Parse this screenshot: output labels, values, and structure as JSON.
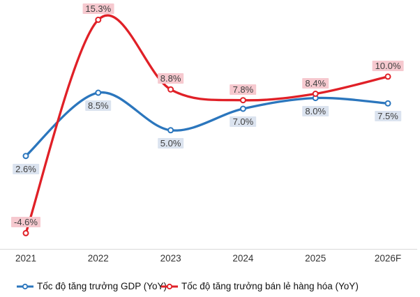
{
  "chart_data": {
    "type": "line",
    "title": "",
    "categories": [
      "2021",
      "2022",
      "2023",
      "2024",
      "2025",
      "2026F"
    ],
    "series": [
      {
        "name": "Tốc độ tăng trưởng GDP (YoY)",
        "values": [
          2.6,
          8.5,
          5.0,
          7.0,
          8.0,
          7.5
        ],
        "labels": [
          "2.6%",
          "8.5%",
          "5.0%",
          "7.0%",
          "8.0%",
          "7.5%"
        ],
        "color": "#2b76bd",
        "label_bg": "#dbe3ef",
        "label_position": "below",
        "marker": "open-circle"
      },
      {
        "name": "Tốc độ tăng trưởng bán lẻ hàng hóa (YoY)",
        "values": [
          -4.6,
          15.3,
          8.8,
          7.8,
          8.4,
          10.0
        ],
        "labels": [
          "-4.6%",
          "15.3%",
          "8.8%",
          "7.8%",
          "8.4%",
          "10.0%"
        ],
        "color": "#e02027",
        "label_bg": "#f6c9cf",
        "label_position": "above",
        "marker": "open-circle"
      }
    ],
    "ylim": [
      -6.1,
      16.6
    ],
    "grid": false,
    "smooth": true,
    "legend_position": "bottom",
    "label_text_color": "#3f3f3f",
    "axis_line_color": "#d9d9d9"
  }
}
